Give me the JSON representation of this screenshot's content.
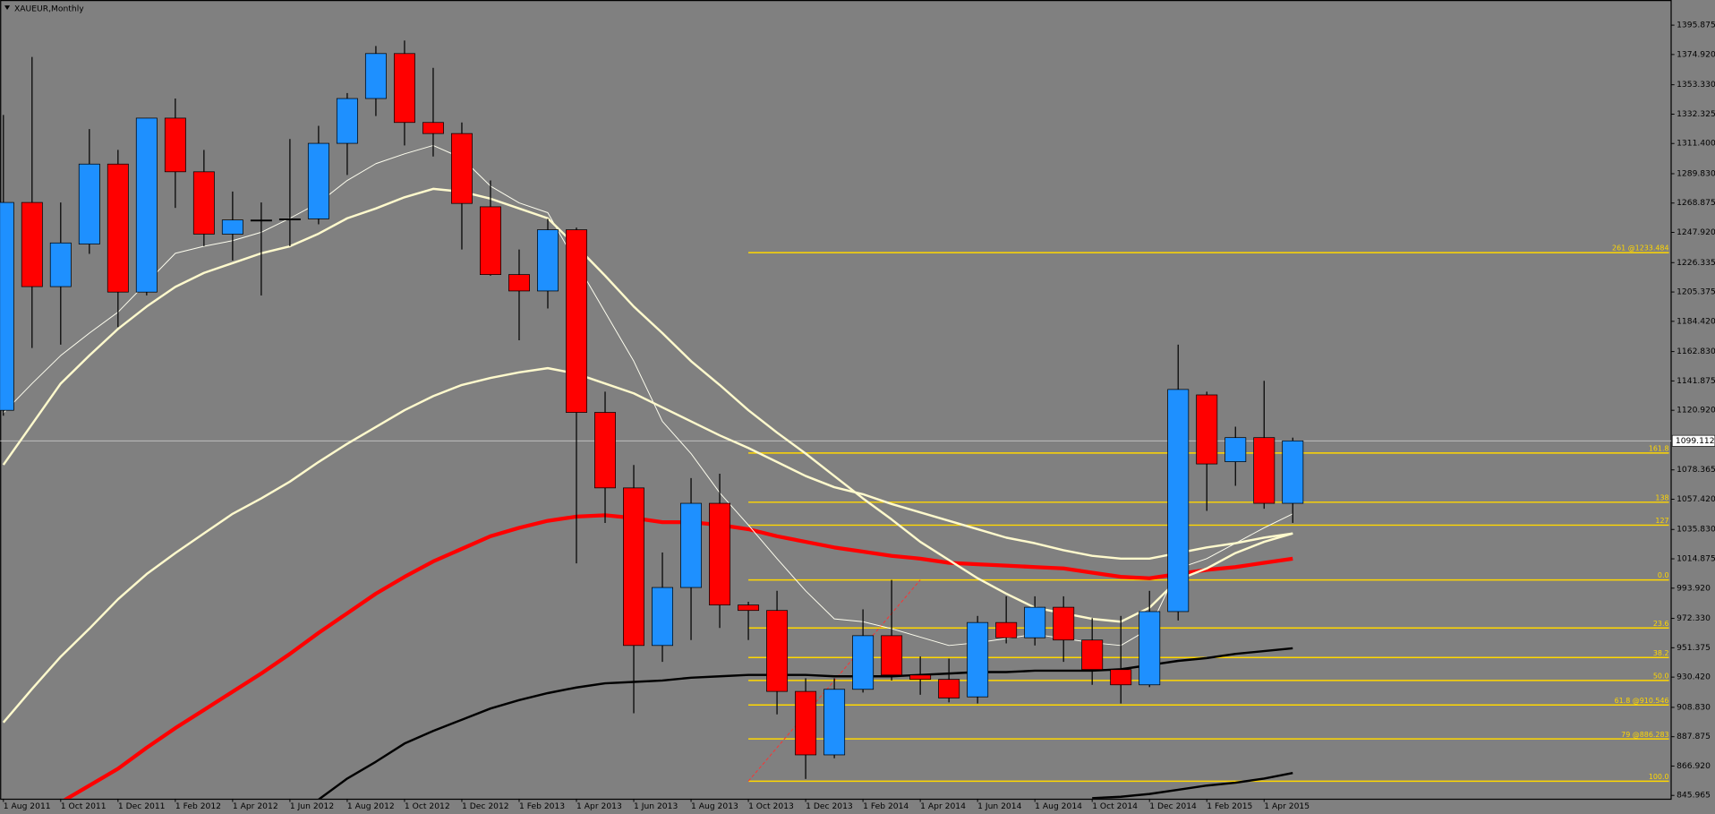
{
  "chart_data": {
    "type": "candlestick",
    "title": "XAUEUR,Monthly",
    "categories": [
      "1 Aug 2011",
      null,
      "1 Oct 2011",
      null,
      "1 Dec 2011",
      null,
      "1 Feb 2012",
      null,
      "1 Apr 2012",
      null,
      "1 Jun 2012",
      null,
      "1 Aug 2012",
      null,
      "1 Oct 2012",
      null,
      "1 Dec 2012",
      null,
      "1 Feb 2013",
      null,
      "1 Apr 2013",
      null,
      "1 Jun 2013",
      null,
      "1 Aug 2013",
      null,
      "1 Oct 2013",
      null,
      "1 Dec 2013",
      null,
      "1 Feb 2014",
      null,
      "1 Apr 2014",
      null,
      "1 Jun 2014",
      null,
      "1 Aug 2014",
      null,
      "1 Oct 2014",
      null,
      "1 Dec 2014",
      null,
      "1 Feb 2015",
      null,
      "1 Apr 2015",
      null
    ],
    "open": [
      1120.9,
      1269.3,
      1209.2,
      1239.6,
      1296.7,
      1205.3,
      1329.5,
      1291.2,
      1246.7,
      1256.8,
      1257.6,
      1257.6,
      1311.5,
      1343.5,
      1375.6,
      1326.4,
      1318.5,
      1266.2,
      1217.8,
      1206.1,
      1249.8,
      1119.4,
      1065.5,
      953.0,
      994.4,
      1054.5,
      981.9,
      978.0,
      920.2,
      874.9,
      921.7,
      960.0,
      931.9,
      928.8,
      916.3,
      969.4,
      958.5,
      980.3,
      956.9,
      935.8,
      924.9,
      977.2,
      1131.9,
      1084.2,
      1101.4,
      1054.5
    ],
    "high": [
      1331.8,
      1373.2,
      1269.3,
      1321.7,
      1306.8,
      1329.5,
      1343.5,
      1306.8,
      1277.1,
      1269.3,
      1314.6,
      1324.0,
      1347.4,
      1381.0,
      1384.9,
      1365.4,
      1326.4,
      1285.0,
      1235.7,
      1257.6,
      1251.4,
      1134.2,
      1081.9,
      1019.4,
      1072.5,
      1075.6,
      984.2,
      992.0,
      929.6,
      929.6,
      978.8,
      999.8,
      945.2,
      943.6,
      974.1,
      988.1,
      988.1,
      988.1,
      972.5,
      974.1,
      992.0,
      1167.8,
      1134.2,
      1109.2,
      1142.0,
      1101.4
    ],
    "low": [
      1117.0,
      1165.4,
      1167.8,
      1232.6,
      1180.3,
      1202.9,
      1265.4,
      1238.1,
      1227.9,
      1202.9,
      1238.1,
      1253.7,
      1288.9,
      1331.0,
      1310.0,
      1302.1,
      1235.7,
      1217.0,
      1170.9,
      1193.6,
      1011.6,
      1040.5,
      904.6,
      941.3,
      956.9,
      965.5,
      956.9,
      903.8,
      857.7,
      872.5,
      919.4,
      928.0,
      917.8,
      912.4,
      911.6,
      954.5,
      953.0,
      941.3,
      924.9,
      911.6,
      923.3,
      970.9,
      1049.1,
      1067.0,
      1050.6,
      1040.5
    ],
    "close": [
      1269.3,
      1209.2,
      1240.4,
      1296.7,
      1205.3,
      1329.5,
      1291.2,
      1246.7,
      1256.8,
      1256.8,
      1257.6,
      1311.5,
      1343.5,
      1375.6,
      1326.4,
      1318.5,
      1268.6,
      1217.8,
      1206.1,
      1249.8,
      1119.4,
      1065.5,
      953.0,
      994.4,
      1054.5,
      981.9,
      978.0,
      920.2,
      874.9,
      921.7,
      960.0,
      931.9,
      928.8,
      915.5,
      969.4,
      958.5,
      980.3,
      956.9,
      935.8,
      924.9,
      977.2,
      1135.8,
      1082.6,
      1101.4,
      1054.5,
      1099.1
    ],
    "up_color": "#1e90ff",
    "down_color": "#ff0000",
    "doji_color": "#000000",
    "series": [
      {
        "color": "#ff0000",
        "width": 3.5,
        "values": [
          null,
          null,
          841,
          853,
          865,
          880,
          894,
          907,
          920,
          933,
          947,
          962,
          976,
          990,
          1002,
          1013,
          1022,
          1031,
          1037,
          1042,
          1045,
          1046,
          1044,
          1041,
          1041,
          1039,
          1036,
          1031,
          1027,
          1023,
          1020,
          1017,
          1015,
          1012,
          1011,
          1010,
          1009,
          1008,
          1005,
          1002,
          1001,
          1004,
          1007,
          1009,
          1012,
          1015
        ]
      },
      {
        "color": "#000000",
        "width": 2,
        "values": [
          null,
          null,
          null,
          null,
          null,
          null,
          null,
          null,
          null,
          null,
          null,
          843,
          858,
          870,
          883,
          892,
          900,
          908,
          914,
          919,
          923,
          926,
          927,
          928,
          930,
          931,
          932,
          932,
          932,
          931,
          931,
          931,
          932,
          933,
          934,
          934,
          935,
          935,
          935,
          936,
          939,
          942,
          944,
          947,
          949,
          951
        ]
      },
      {
        "color": "#000000",
        "width": 2,
        "values": [
          null,
          null,
          null,
          null,
          null,
          null,
          null,
          null,
          null,
          null,
          null,
          null,
          null,
          null,
          null,
          null,
          null,
          null,
          null,
          null,
          null,
          null,
          null,
          null,
          null,
          null,
          null,
          null,
          null,
          null,
          null,
          null,
          null,
          null,
          null,
          null,
          null,
          null,
          844,
          845,
          847,
          850,
          853,
          855,
          858,
          862
        ]
      },
      {
        "color": "#fffff0",
        "width": 0.8,
        "values": [
          1119,
          1140,
          1160,
          1176,
          1191,
          1212,
          1233,
          1238,
          1242,
          1248,
          1258,
          1269,
          1285,
          1297,
          1304,
          1310,
          1301,
          1281,
          1269,
          1262,
          1226,
          1191,
          1156,
          1113,
          1090,
          1062,
          1039,
          1015,
          992,
          972,
          970,
          965,
          959,
          953,
          955,
          958,
          961,
          958,
          955,
          953,
          965,
          1008,
          1015,
          1026,
          1037,
          1047
        ]
      },
      {
        "color": "#fffacd",
        "width": 2,
        "values": [
          1082,
          1111,
          1140,
          1160,
          1179,
          1195,
          1209,
          1219,
          1226,
          1233,
          1238,
          1247,
          1258,
          1265,
          1273,
          1279,
          1277,
          1272,
          1265,
          1258,
          1238,
          1217,
          1195,
          1176,
          1156,
          1139,
          1121,
          1105,
          1090,
          1074,
          1058,
          1043,
          1027,
          1014,
          1001,
          990,
          980,
          976,
          972,
          970,
          980,
          1000,
          1008,
          1019,
          1027,
          1033
        ]
      },
      {
        "color": "#fffacd",
        "width": 2,
        "values": [
          898,
          922,
          945,
          965,
          986,
          1004,
          1019,
          1033,
          1047,
          1058,
          1070,
          1084,
          1097,
          1109,
          1121,
          1131,
          1139,
          1144,
          1148,
          1151,
          1147,
          1140,
          1133,
          1123,
          1113,
          1103,
          1094,
          1084,
          1074,
          1066,
          1061,
          1054,
          1048,
          1042,
          1036,
          1030,
          1026,
          1021,
          1017,
          1015,
          1015,
          1019,
          1023,
          1026,
          1030,
          1033
        ]
      }
    ],
    "fib_color": "#ffd700",
    "fib_levels": [
      {
        "label": "261 @1233.484",
        "value": 1233.484
      },
      {
        "label": "161.8",
        "value": 1090.4
      },
      {
        "label": "138",
        "value": 1055.3
      },
      {
        "label": "127",
        "value": 1038.9
      },
      {
        "label": "0.0",
        "value": 999.8
      },
      {
        "label": "23.6",
        "value": 965.5
      },
      {
        "label": "38.2",
        "value": 944.4
      },
      {
        "label": "50.0",
        "value": 928.0
      },
      {
        "label": "61.8 @910.546",
        "value": 910.546
      },
      {
        "label": "79 @886.283",
        "value": 886.283
      },
      {
        "label": "100.0",
        "value": 856.1
      }
    ],
    "last_price": 1099.112,
    "ylim": [
      843.62,
      1413.84
    ],
    "yticks": [
      1395.875,
      {
        "value": 1374.92,
        "label": "1374.920"
      },
      {
        "value": 1353.33,
        "label": "1353.330"
      },
      1332.325,
      {
        "value": 1311.4,
        "label": "1311.400"
      },
      {
        "value": 1289.83,
        "label": "1289.830"
      },
      1268.875,
      {
        "value": 1247.92,
        "label": "1247.920"
      },
      1226.335,
      1205.375,
      {
        "value": 1184.42,
        "label": "1184.420"
      },
      {
        "value": 1162.83,
        "label": "1162.830"
      },
      1141.875,
      {
        "value": 1120.92,
        "label": "1120.920"
      },
      1078.365,
      {
        "value": 1057.42,
        "label": "1057.420"
      },
      {
        "value": 1035.83,
        "label": "1035.830"
      },
      1014.875,
      {
        "value": 993.92,
        "label": "993.920"
      },
      {
        "value": 972.33,
        "label": "972.330"
      },
      951.375,
      {
        "value": 930.42,
        "label": "930.420"
      },
      {
        "value": 908.83,
        "label": "908.830"
      },
      887.875,
      {
        "value": 866.92,
        "label": "866.920"
      },
      845.965
    ]
  }
}
